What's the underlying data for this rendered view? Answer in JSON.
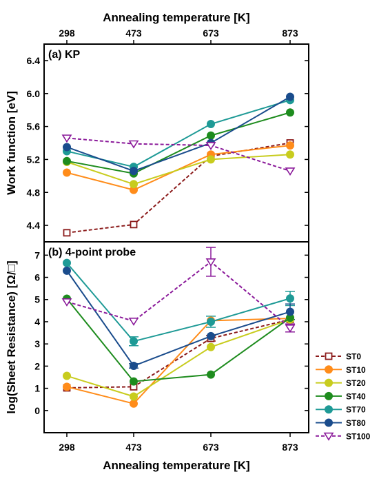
{
  "chart_data": {
    "type": "line",
    "x_top_label": "Annealing temperature [K]",
    "x_bottom_label": "Annealing temperature [K]",
    "categories": [
      "298",
      "473",
      "673",
      "873"
    ],
    "panels": [
      {
        "id": "a",
        "title": "(a) KP",
        "ylabel": "Work function [eV]",
        "ylim": [
          4.2,
          6.6
        ],
        "yticks": [
          "4.4",
          "4.8",
          "5.2",
          "5.6",
          "6.0",
          "6.4"
        ],
        "series": [
          {
            "name": "ST0",
            "values": [
              4.31,
              4.41,
              5.24,
              5.4
            ]
          },
          {
            "name": "ST10",
            "values": [
              5.04,
              4.83,
              5.26,
              5.37
            ]
          },
          {
            "name": "ST20",
            "values": [
              5.17,
              4.9,
              5.2,
              5.26
            ]
          },
          {
            "name": "ST40",
            "values": [
              5.18,
              5.03,
              5.49,
              5.77
            ]
          },
          {
            "name": "ST70",
            "values": [
              5.3,
              5.11,
              5.63,
              5.92
            ]
          },
          {
            "name": "ST80",
            "values": [
              5.35,
              5.06,
              5.4,
              5.96
            ]
          },
          {
            "name": "ST100",
            "values": [
              5.46,
              5.39,
              5.37,
              5.06
            ]
          }
        ]
      },
      {
        "id": "b",
        "title": "(b) 4-point probe",
        "ylabel": "log(Sheet Resistance) [Ω/□]",
        "ylim": [
          -1,
          7.6
        ],
        "yticks": [
          "0",
          "1",
          "2",
          "3",
          "4",
          "5",
          "6",
          "7"
        ],
        "series": [
          {
            "name": "ST0",
            "values": [
              1.02,
              1.07,
              3.25,
              4.1
            ]
          },
          {
            "name": "ST10",
            "values": [
              1.07,
              0.31,
              4.05,
              4.15
            ]
          },
          {
            "name": "ST20",
            "values": [
              1.56,
              0.63,
              2.86,
              4.1
            ]
          },
          {
            "name": "ST40",
            "values": [
              5.04,
              1.31,
              1.62,
              4.18
            ]
          },
          {
            "name": "ST70",
            "values": [
              6.65,
              3.12,
              4.0,
              5.05
            ]
          },
          {
            "name": "ST80",
            "values": [
              6.3,
              2.01,
              3.35,
              4.45
            ]
          },
          {
            "name": "ST100",
            "values": [
              4.9,
              4.03,
              6.7,
              3.72
            ]
          }
        ],
        "error_bars": [
          {
            "series": "ST0",
            "point": 2,
            "err": 0.12
          },
          {
            "series": "ST70",
            "point": 1,
            "err": 0.2
          },
          {
            "series": "ST70",
            "point": 2,
            "err": 0.25
          },
          {
            "series": "ST70",
            "point": 3,
            "err": 0.32
          },
          {
            "series": "ST80",
            "point": 1,
            "err": 0.1
          },
          {
            "series": "ST80",
            "point": 3,
            "err": 0.35
          },
          {
            "series": "ST100",
            "point": 2,
            "err": 0.65
          },
          {
            "series": "ST100",
            "point": 3,
            "err": 0.18
          }
        ]
      }
    ],
    "legend": [
      {
        "name": "ST0",
        "color": "#8B1A1A",
        "marker": "square-open",
        "dashed": true
      },
      {
        "name": "ST10",
        "color": "#FF8C1A",
        "marker": "circle",
        "dashed": false
      },
      {
        "name": "ST20",
        "color": "#C8CC1E",
        "marker": "circle",
        "dashed": false
      },
      {
        "name": "ST40",
        "color": "#1E8C1E",
        "marker": "circle",
        "dashed": false
      },
      {
        "name": "ST70",
        "color": "#1E9A96",
        "marker": "circle",
        "dashed": false
      },
      {
        "name": "ST80",
        "color": "#1A4C8C",
        "marker": "circle",
        "dashed": false
      },
      {
        "name": "ST100",
        "color": "#8B1A9A",
        "marker": "triangle-down-open",
        "dashed": true
      }
    ],
    "legend_placement": "right"
  }
}
